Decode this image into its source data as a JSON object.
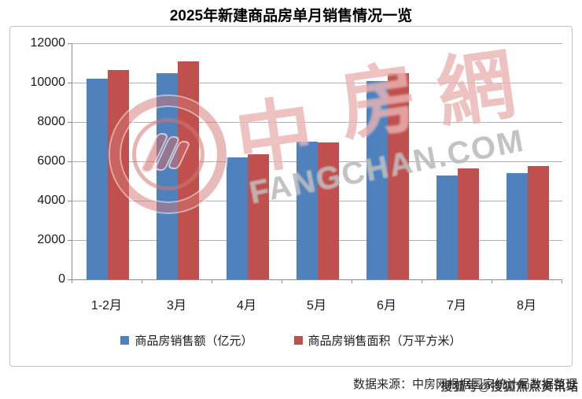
{
  "page": {
    "title": "2025年新建商品房单月销售情况一览",
    "source_note": {
      "base": "数据来源：中房网根据国家统计局数据整理",
      "watermark_overlay": "搜狐号@搜狐焦点资讯站"
    },
    "watermark": {
      "logo": "fangchan-ring-logo",
      "cn_chars": [
        "中",
        "房",
        "網"
      ],
      "en_text": "FANGCHAN.COM"
    }
  },
  "colors": {
    "series_blue": "#4F81BD",
    "series_red": "#C0504D",
    "gridline": "#b0b0b0",
    "axis": "#8c8c8c",
    "watermark_pink": "rgba(224,144,142,0.55)",
    "watermark_gray": "rgba(145,145,145,0.55)"
  },
  "chart_data": {
    "type": "bar",
    "title": "2025年新建商品房单月销售情况一览",
    "categories": [
      "1-2月",
      "3月",
      "4月",
      "5月",
      "6月",
      "7月",
      "8月"
    ],
    "series": [
      {
        "name": "商品房销售额（亿元）",
        "color": "#4F81BD",
        "values": [
          10200,
          10500,
          6200,
          7000,
          10100,
          5300,
          5400
        ]
      },
      {
        "name": "商品房销售面积（万平方米）",
        "color": "#C0504D",
        "values": [
          10650,
          11100,
          6350,
          6950,
          10500,
          5650,
          5750
        ]
      }
    ],
    "xlabel": "",
    "ylabel": "",
    "ylim": [
      0,
      12000
    ],
    "yticks": [
      0,
      2000,
      4000,
      6000,
      8000,
      10000,
      12000
    ],
    "grid": true,
    "legend_position": "bottom"
  }
}
